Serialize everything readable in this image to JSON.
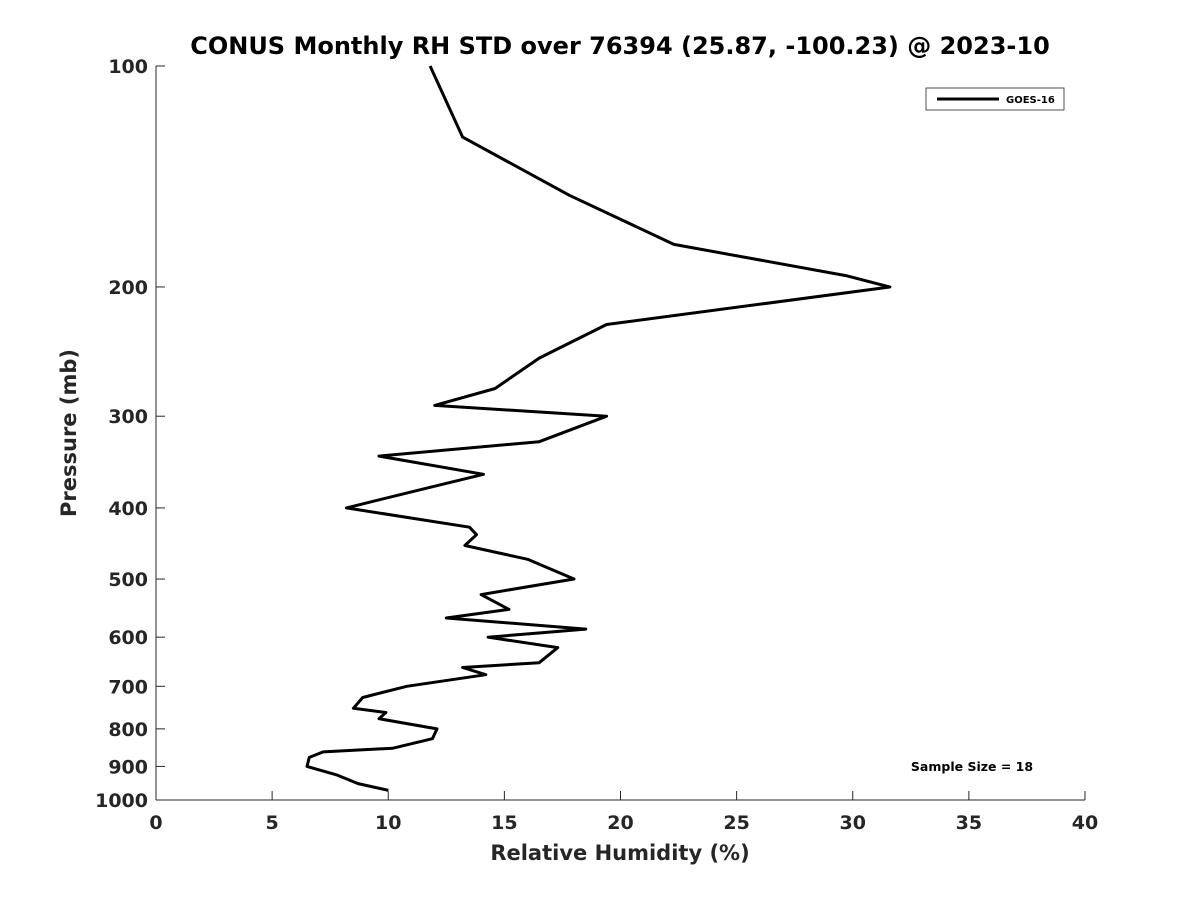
{
  "chart_data": {
    "type": "line",
    "title": "CONUS Monthly RH STD over 76394 (25.87, -100.23) @ 2023-10",
    "xlabel": "Relative Humidity (%)",
    "ylabel": "Pressure (mb)",
    "xlim": [
      0,
      40
    ],
    "ylim": [
      100,
      1000
    ],
    "y_scale": "log",
    "y_reversed": true,
    "x_ticks": [
      0,
      5,
      10,
      15,
      20,
      25,
      30,
      35,
      40
    ],
    "y_ticks": [
      100,
      200,
      300,
      400,
      500,
      600,
      700,
      800,
      900,
      1000
    ],
    "grid": false,
    "legend_position": "top-right",
    "series": [
      {
        "name": "GOES-16",
        "color": "#000000",
        "points": [
          [
            11.8,
            100
          ],
          [
            13.2,
            125
          ],
          [
            17.8,
            150
          ],
          [
            22.3,
            175
          ],
          [
            29.7,
            193
          ],
          [
            31.6,
            200
          ],
          [
            19.4,
            225
          ],
          [
            16.5,
            250
          ],
          [
            14.6,
            275
          ],
          [
            12.0,
            290
          ],
          [
            19.4,
            300
          ],
          [
            16.5,
            325
          ],
          [
            9.6,
            340
          ],
          [
            14.1,
            360
          ],
          [
            11.8,
            375
          ],
          [
            8.2,
            400
          ],
          [
            13.5,
            425
          ],
          [
            13.8,
            435
          ],
          [
            13.3,
            450
          ],
          [
            16.0,
            470
          ],
          [
            18.0,
            500
          ],
          [
            14.0,
            525
          ],
          [
            15.2,
            550
          ],
          [
            12.5,
            565
          ],
          [
            18.5,
            585
          ],
          [
            14.3,
            600
          ],
          [
            17.3,
            620
          ],
          [
            16.5,
            650
          ],
          [
            13.2,
            660
          ],
          [
            14.2,
            675
          ],
          [
            10.8,
            700
          ],
          [
            8.9,
            725
          ],
          [
            8.5,
            750
          ],
          [
            9.9,
            760
          ],
          [
            9.6,
            775
          ],
          [
            12.1,
            800
          ],
          [
            11.9,
            825
          ],
          [
            10.2,
            850
          ],
          [
            7.2,
            860
          ],
          [
            6.6,
            875
          ],
          [
            6.5,
            900
          ],
          [
            7.8,
            925
          ],
          [
            8.7,
            950
          ],
          [
            10.0,
            970
          ]
        ]
      }
    ],
    "annotations": [
      {
        "text": "Sample Size = 18",
        "position": "bottom-right"
      }
    ]
  }
}
